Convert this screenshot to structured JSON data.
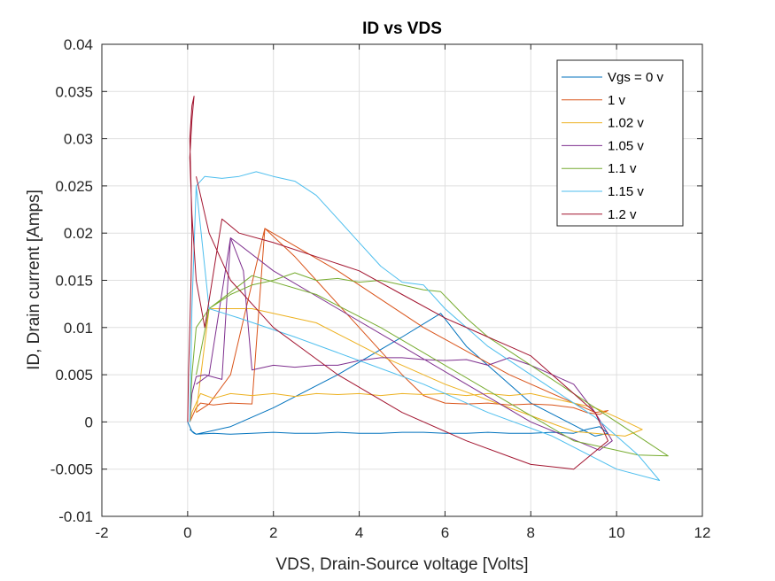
{
  "chart_data": {
    "type": "line",
    "title": "ID vs VDS",
    "xlabel": "VDS, Drain-Source voltage [Volts]",
    "ylabel": "ID, Drain current [Amps]",
    "xlim": [
      -2,
      12
    ],
    "ylim": [
      -0.01,
      0.04
    ],
    "xticks": [
      -2,
      0,
      2,
      4,
      6,
      8,
      10,
      12
    ],
    "yticks": [
      -0.01,
      -0.005,
      0,
      0.005,
      0.01,
      0.015,
      0.02,
      0.025,
      0.03,
      0.035,
      0.04
    ],
    "xtick_labels": [
      "-2",
      "0",
      "2",
      "4",
      "6",
      "8",
      "10",
      "12"
    ],
    "ytick_labels": [
      "-0.01",
      "-0.005",
      "0",
      "0.005",
      "0.01",
      "0.015",
      "0.02",
      "0.025",
      "0.03",
      "0.035",
      "0.04"
    ],
    "grid": true,
    "legend_position": "top-right",
    "series": [
      {
        "name": "Vgs = 0 v",
        "color": "#0072BD",
        "x": [
          0.0,
          0.05,
          0.1,
          0.15,
          0.2,
          0.6,
          1.0,
          1.5,
          2.0,
          2.5,
          3.0,
          3.5,
          4.0,
          4.5,
          5.0,
          5.5,
          6.0,
          6.5,
          7.0,
          7.5,
          8.0,
          8.5,
          9.0,
          9.3,
          9.6,
          9.8,
          9.5,
          8.0,
          6.5,
          5.9,
          5.0,
          3.5,
          2.0,
          1.0,
          0.5,
          0.2,
          0.05
        ],
        "y": [
          0.0,
          -0.0005,
          -0.001,
          -0.0012,
          -0.0013,
          -0.0012,
          -0.0013,
          -0.0012,
          -0.0011,
          -0.0012,
          -0.0012,
          -0.0011,
          -0.0012,
          -0.0012,
          -0.0011,
          -0.0011,
          -0.0012,
          -0.0012,
          -0.0011,
          -0.0012,
          -0.0012,
          -0.0011,
          -0.0012,
          -0.0008,
          -0.0005,
          -0.0012,
          -0.0015,
          0.002,
          0.008,
          0.0115,
          0.009,
          0.005,
          0.0015,
          -0.0005,
          -0.001,
          -0.0013,
          -0.0008
        ]
      },
      {
        "name": "1 v",
        "color": "#D95319",
        "x": [
          0.05,
          0.1,
          0.15,
          0.2,
          0.3,
          0.6,
          1.0,
          1.5,
          1.8,
          2.5,
          3.0,
          3.5,
          4.0,
          4.5,
          5.0,
          5.5,
          6.0,
          6.5,
          7.0,
          7.5,
          8.0,
          8.5,
          9.0,
          9.3,
          9.6,
          9.8,
          9.5,
          7.5,
          5.5,
          3.5,
          1.8,
          1.0,
          0.5,
          0.2
        ],
        "y": [
          0.0,
          0.0005,
          0.001,
          0.0015,
          0.002,
          0.0018,
          0.002,
          0.0019,
          0.0205,
          0.0175,
          0.015,
          0.0125,
          0.01,
          0.0075,
          0.005,
          0.0028,
          0.002,
          0.0019,
          0.002,
          0.0018,
          0.0019,
          0.0018,
          0.0015,
          0.001,
          0.0008,
          0.0012,
          0.001,
          0.005,
          0.01,
          0.016,
          0.0205,
          0.005,
          0.0019,
          0.001
        ]
      },
      {
        "name": "1.02 v",
        "color": "#EDB120",
        "x": [
          0.05,
          0.1,
          0.2,
          0.3,
          0.6,
          1.0,
          1.5,
          2.0,
          2.5,
          3.0,
          3.5,
          4.0,
          4.5,
          5.0,
          5.5,
          6.0,
          6.5,
          7.0,
          7.5,
          8.0,
          8.5,
          9.0,
          9.5,
          10.0,
          10.6,
          10.2,
          9.0,
          7.5,
          6.0,
          4.5,
          3.0,
          1.5,
          0.5,
          0.2
        ],
        "y": [
          0.0,
          0.001,
          0.002,
          0.003,
          0.0025,
          0.003,
          0.0028,
          0.003,
          0.0027,
          0.003,
          0.0029,
          0.003,
          0.0028,
          0.003,
          0.0029,
          0.003,
          0.0028,
          0.003,
          0.0028,
          0.003,
          0.0025,
          0.002,
          0.0015,
          0.0005,
          -0.0008,
          -0.0015,
          -0.001,
          0.0015,
          0.004,
          0.007,
          0.0105,
          0.012,
          0.012,
          0.001
        ]
      },
      {
        "name": "1.05 v",
        "color": "#7E2F8E",
        "x": [
          0.05,
          0.1,
          0.2,
          0.4,
          0.8,
          1.0,
          1.3,
          1.5,
          2.0,
          2.5,
          3.0,
          3.5,
          4.0,
          4.5,
          5.0,
          5.5,
          6.0,
          6.5,
          7.0,
          7.5,
          8.0,
          8.5,
          9.0,
          9.5,
          9.9,
          9.6,
          8.0,
          6.5,
          5.0,
          3.5,
          2.0,
          1.0,
          0.5,
          0.2
        ],
        "y": [
          0.0,
          0.003,
          0.0048,
          0.005,
          0.0045,
          0.0195,
          0.016,
          0.0055,
          0.006,
          0.0058,
          0.006,
          0.006,
          0.0065,
          0.0068,
          0.0068,
          0.0066,
          0.0065,
          0.0066,
          0.006,
          0.0068,
          0.006,
          0.005,
          0.004,
          0.001,
          -0.002,
          -0.003,
          0.0,
          0.004,
          0.008,
          0.012,
          0.016,
          0.0195,
          0.005,
          0.004
        ]
      },
      {
        "name": "1.1 v",
        "color": "#77AC30",
        "x": [
          0.05,
          0.1,
          0.2,
          0.5,
          1.0,
          1.5,
          2.0,
          2.5,
          3.0,
          3.5,
          4.0,
          4.5,
          5.0,
          5.5,
          5.9,
          6.5,
          7.0,
          7.5,
          8.0,
          8.5,
          9.0,
          9.5,
          10.0,
          10.5,
          11.2,
          10.5,
          9.0,
          7.5,
          6.0,
          4.5,
          3.0,
          1.5,
          0.5,
          0.2
        ],
        "y": [
          0.0,
          0.005,
          0.01,
          0.012,
          0.0135,
          0.0145,
          0.015,
          0.0158,
          0.015,
          0.0152,
          0.0148,
          0.015,
          0.0145,
          0.014,
          0.0138,
          0.011,
          0.009,
          0.0075,
          0.006,
          0.0045,
          0.003,
          0.0015,
          0.0,
          -0.0015,
          -0.0036,
          -0.0035,
          -0.002,
          0.002,
          0.006,
          0.01,
          0.0135,
          0.0155,
          0.012,
          0.005
        ]
      },
      {
        "name": "1.15 v",
        "color": "#4DBEEE",
        "x": [
          0.05,
          0.1,
          0.2,
          0.4,
          0.8,
          1.2,
          1.6,
          2.0,
          2.5,
          3.0,
          3.5,
          4.0,
          4.5,
          5.0,
          5.5,
          6.0,
          6.5,
          7.0,
          7.5,
          8.0,
          8.5,
          9.0,
          9.5,
          10.0,
          10.5,
          11.0,
          10.0,
          8.5,
          7.0,
          5.5,
          4.0,
          2.5,
          1.2,
          0.5,
          0.2
        ],
        "y": [
          0.0,
          0.012,
          0.025,
          0.026,
          0.0258,
          0.026,
          0.0265,
          0.026,
          0.0255,
          0.024,
          0.0215,
          0.019,
          0.0165,
          0.0148,
          0.0145,
          0.012,
          0.01,
          0.008,
          0.0065,
          0.005,
          0.0035,
          0.002,
          0.0005,
          -0.0015,
          -0.0035,
          -0.0062,
          -0.005,
          -0.0015,
          0.001,
          0.004,
          0.0065,
          0.009,
          0.011,
          0.012,
          0.025
        ]
      },
      {
        "name": "1.2 v",
        "color": "#A2142F",
        "x": [
          0.0,
          0.02,
          0.05,
          0.08,
          0.1,
          0.08,
          0.05,
          0.1,
          0.15,
          0.1,
          0.05,
          0.1,
          0.2,
          0.4,
          0.8,
          1.2,
          2.0,
          3.0,
          4.0,
          5.0,
          6.0,
          7.0,
          7.5,
          8.0,
          8.5,
          9.0,
          9.5,
          9.8,
          9.0,
          8.0,
          6.5,
          5.0,
          3.5,
          2.0,
          1.0,
          0.5,
          0.2
        ],
        "y": [
          0.0,
          0.005,
          0.01,
          0.015,
          0.02,
          0.025,
          0.03,
          0.0335,
          0.0345,
          0.032,
          0.028,
          0.022,
          0.015,
          0.01,
          0.0215,
          0.02,
          0.019,
          0.0175,
          0.016,
          0.0135,
          0.011,
          0.009,
          0.008,
          0.007,
          0.005,
          0.003,
          0.001,
          -0.002,
          -0.005,
          -0.0045,
          -0.002,
          0.001,
          0.005,
          0.01,
          0.015,
          0.02,
          0.026
        ]
      }
    ]
  }
}
